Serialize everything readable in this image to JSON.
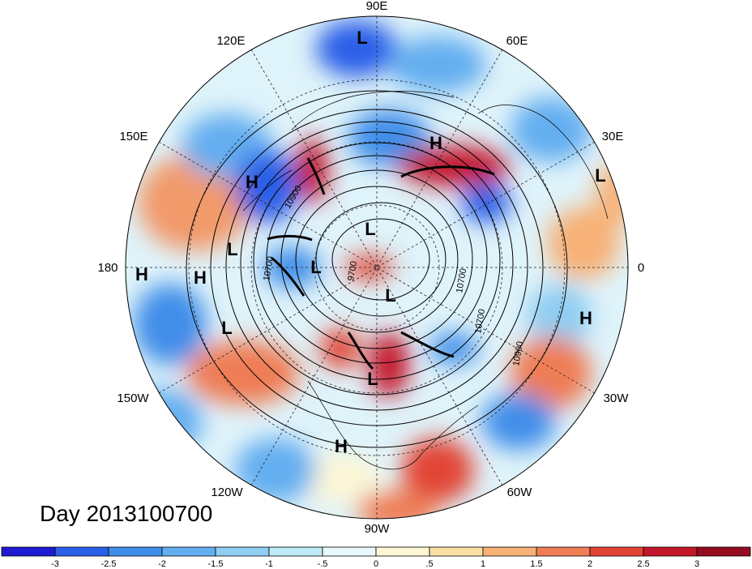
{
  "title": "Day 2013100700",
  "longitude_labels": {
    "top": "90E",
    "upper_right": "60E",
    "right_upper": "30E",
    "right": "0",
    "right_lower": "30W",
    "lower_right": "60W",
    "bottom": "90W",
    "lower_left": "120W",
    "left_lower": "150W",
    "left": "180",
    "left_upper": "150E",
    "upper_left": "120E"
  },
  "pressure_centers": [
    {
      "label": "L",
      "pos": "near 90E top"
    },
    {
      "label": "H",
      "pos": "northern Europe"
    },
    {
      "label": "L",
      "pos": "east edge"
    },
    {
      "label": "H",
      "pos": "north Pacific west"
    },
    {
      "label": "L",
      "pos": "Kamchatka region"
    },
    {
      "label": "H",
      "pos": "dateline"
    },
    {
      "label": "H",
      "pos": "near 180"
    },
    {
      "label": "L",
      "pos": "Gulf of Alaska"
    },
    {
      "label": "L",
      "pos": "central Arctic"
    },
    {
      "label": "L",
      "pos": "Beaufort"
    },
    {
      "label": "L",
      "pos": "Canada Arctic"
    },
    {
      "label": "L",
      "pos": "Hudson Bay"
    },
    {
      "label": "H",
      "pos": "Atlantic east"
    },
    {
      "label": "H",
      "pos": "Mexico"
    }
  ],
  "contour_labels": [
    "10900",
    "10700",
    "9700",
    "10700",
    "10900",
    "10700"
  ],
  "colorbar": {
    "ticks": [
      "-3",
      "-2.5",
      "-2",
      "-1.5",
      "-1",
      "-.5",
      "0",
      ".5",
      "1",
      "1.5",
      "2",
      "2.5",
      "3"
    ],
    "colors": [
      "#1e1bd2",
      "#2c5fe8",
      "#3f8ee9",
      "#63aef0",
      "#8fcdf2",
      "#bfeaf7",
      "#e8f8fb",
      "#fdf7d5",
      "#fbe0a6",
      "#f7b176",
      "#ef7d55",
      "#e24434",
      "#c4172b",
      "#950b1f"
    ]
  }
}
